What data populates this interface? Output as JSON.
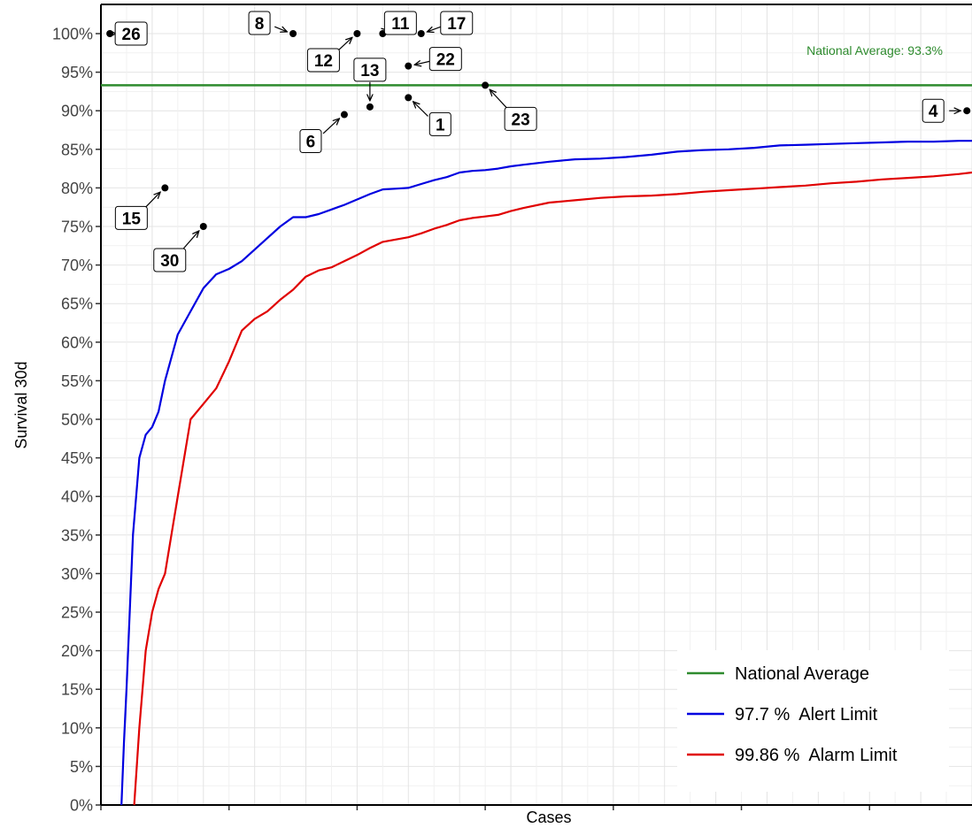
{
  "chart_data": {
    "type": "line",
    "title": "",
    "xlabel": "Cases",
    "ylabel": "Survival 30d",
    "xlim": [
      0,
      68
    ],
    "ylim": [
      0,
      1
    ],
    "y_ticks": [
      "0%",
      "5%",
      "10%",
      "15%",
      "20%",
      "25%",
      "30%",
      "35%",
      "40%",
      "45%",
      "50%",
      "55%",
      "60%",
      "65%",
      "70%",
      "75%",
      "80%",
      "85%",
      "90%",
      "95%",
      "100%"
    ],
    "grid": true,
    "legend_position": "bottom-right",
    "colors": {
      "national": "#2e8b2e",
      "alert": "#0000e0",
      "alarm": "#e00000",
      "points": "#000000"
    },
    "national_average": {
      "value": 0.933,
      "label": "National Average: 93.3%"
    },
    "legend": [
      "National Average",
      "97.7 %  Alert Limit",
      "99.86 %  Alarm Limit"
    ],
    "series": [
      {
        "name": "97.7 %  Alert Limit",
        "x": [
          1.6,
          1.8,
          2,
          2.5,
          3,
          3.5,
          4,
          4.5,
          5,
          6,
          7,
          8,
          9,
          10,
          11,
          12,
          13,
          14,
          15,
          16,
          17,
          18,
          19,
          20,
          21,
          22,
          23,
          24,
          25,
          26,
          27,
          28,
          29,
          30,
          31,
          32,
          33,
          35,
          37,
          39,
          41,
          43,
          45,
          47,
          49,
          51,
          53,
          55,
          57,
          59,
          61,
          63,
          65,
          67,
          68
        ],
        "y": [
          0,
          0.08,
          0.15,
          0.35,
          0.45,
          0.48,
          0.49,
          0.51,
          0.55,
          0.61,
          0.64,
          0.67,
          0.688,
          0.695,
          0.705,
          0.72,
          0.735,
          0.75,
          0.762,
          0.762,
          0.766,
          0.772,
          0.778,
          0.785,
          0.792,
          0.798,
          0.799,
          0.8,
          0.805,
          0.81,
          0.814,
          0.82,
          0.822,
          0.823,
          0.825,
          0.828,
          0.83,
          0.834,
          0.837,
          0.838,
          0.84,
          0.843,
          0.847,
          0.849,
          0.85,
          0.852,
          0.855,
          0.856,
          0.857,
          0.858,
          0.859,
          0.86,
          0.86,
          0.861,
          0.861
        ]
      },
      {
        "name": "99.86 %  Alarm Limit",
        "x": [
          2.6,
          2.8,
          3,
          3.5,
          4,
          4.5,
          5,
          6,
          7,
          8,
          9,
          10,
          11,
          12,
          13,
          14,
          15,
          16,
          17,
          18,
          19,
          20,
          21,
          22,
          23,
          24,
          25,
          26,
          27,
          28,
          29,
          30,
          31,
          32,
          33,
          35,
          37,
          39,
          41,
          43,
          45,
          47,
          49,
          51,
          53,
          55,
          57,
          59,
          61,
          63,
          65,
          67,
          68
        ],
        "y": [
          0,
          0.05,
          0.1,
          0.2,
          0.25,
          0.28,
          0.3,
          0.4,
          0.5,
          0.52,
          0.54,
          0.575,
          0.615,
          0.63,
          0.64,
          0.655,
          0.668,
          0.685,
          0.693,
          0.697,
          0.705,
          0.713,
          0.722,
          0.73,
          0.733,
          0.736,
          0.741,
          0.747,
          0.752,
          0.758,
          0.761,
          0.763,
          0.765,
          0.77,
          0.774,
          0.781,
          0.784,
          0.787,
          0.789,
          0.79,
          0.792,
          0.795,
          0.797,
          0.799,
          0.801,
          0.803,
          0.806,
          0.808,
          0.811,
          0.813,
          0.815,
          0.818,
          0.82
        ]
      }
    ],
    "points": [
      {
        "label": "26",
        "x": 0.7,
        "y": 1.0
      },
      {
        "label": "8",
        "x": 15,
        "y": 1.0
      },
      {
        "label": "12",
        "x": 20,
        "y": 1.0
      },
      {
        "label": "11",
        "x": 22,
        "y": 1.0
      },
      {
        "label": "17",
        "x": 25,
        "y": 1.0
      },
      {
        "label": "22",
        "x": 24,
        "y": 0.958
      },
      {
        "label": "13",
        "x": 21,
        "y": 0.905
      },
      {
        "label": "6",
        "x": 19,
        "y": 0.895
      },
      {
        "label": "1",
        "x": 24,
        "y": 0.917
      },
      {
        "label": "23",
        "x": 30,
        "y": 0.933
      },
      {
        "label": "4",
        "x": 67.6,
        "y": 0.9
      },
      {
        "label": "15",
        "x": 5,
        "y": 0.8
      },
      {
        "label": "30",
        "x": 8,
        "y": 0.75
      }
    ]
  }
}
